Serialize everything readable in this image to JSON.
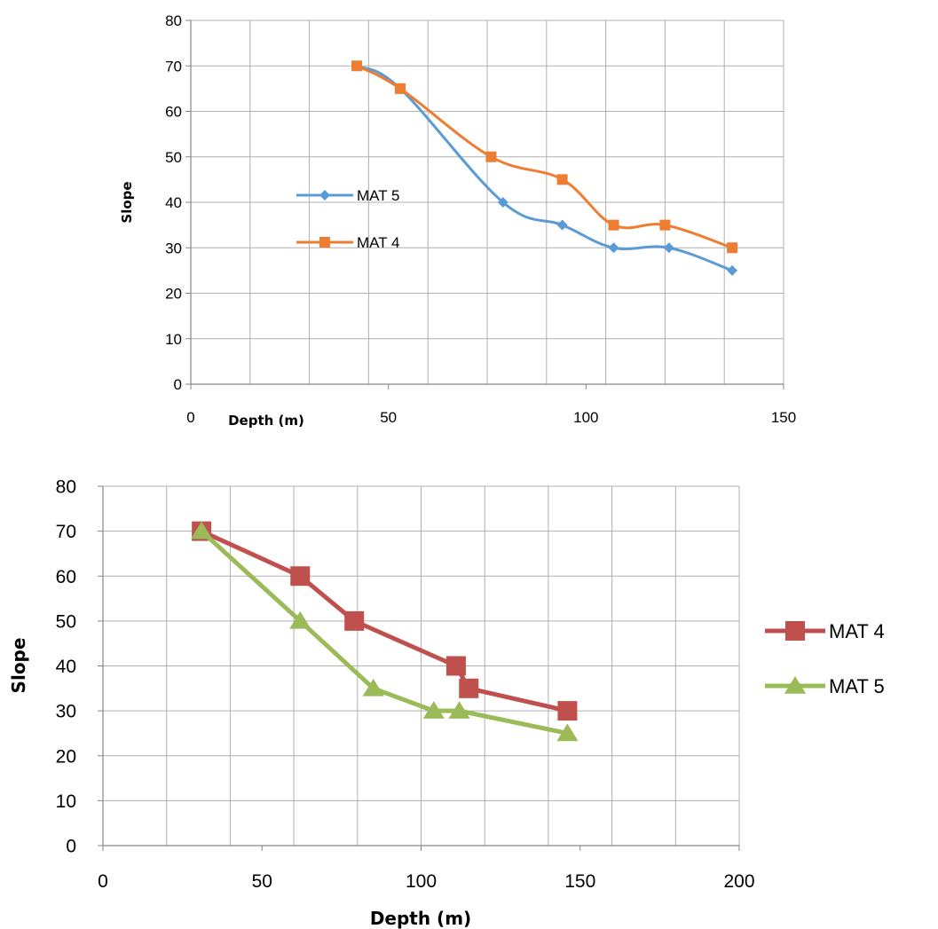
{
  "chart_data": [
    {
      "type": "scatter",
      "style": "smooth-lines-with-markers",
      "title": "",
      "xlabel": "Depth (m)",
      "ylabel": "Slope",
      "xlim": [
        0,
        150
      ],
      "ylim": [
        0,
        80
      ],
      "xticks": [
        0,
        50,
        100,
        150
      ],
      "yticks": [
        0,
        10,
        20,
        30,
        40,
        50,
        60,
        70,
        80
      ],
      "grid": true,
      "legend": "inside-left",
      "series": [
        {
          "name": "MAT 5",
          "color": "#5b9bd5",
          "marker": "diamond",
          "x": [
            42,
            53,
            79,
            94,
            107,
            121,
            137
          ],
          "y": [
            70,
            65,
            40,
            35,
            30,
            30,
            25
          ]
        },
        {
          "name": "MAT 4",
          "color": "#ed7d31",
          "marker": "square",
          "x": [
            42,
            53,
            76,
            94,
            107,
            120,
            137
          ],
          "y": [
            70,
            65,
            50,
            45,
            35,
            35,
            30
          ]
        }
      ]
    },
    {
      "type": "scatter",
      "style": "straight-lines-with-markers",
      "title": "",
      "xlabel": "Depth (m)",
      "ylabel": "Slope",
      "xlim": [
        0,
        200
      ],
      "ylim": [
        0,
        80
      ],
      "xticks": [
        0,
        50,
        100,
        150,
        200
      ],
      "yticks": [
        0,
        10,
        20,
        30,
        40,
        50,
        60,
        70,
        80
      ],
      "grid": true,
      "legend": "right",
      "series": [
        {
          "name": "MAT 4",
          "color": "#c0504d",
          "marker": "square",
          "x": [
            31,
            62,
            79,
            111,
            115,
            146
          ],
          "y": [
            70,
            60,
            50,
            40,
            35,
            30
          ]
        },
        {
          "name": "MAT 5",
          "color": "#9bbb59",
          "marker": "triangle",
          "x": [
            31,
            62,
            85,
            104,
            112,
            146
          ],
          "y": [
            70,
            50,
            35,
            30,
            30,
            25
          ]
        }
      ]
    }
  ]
}
